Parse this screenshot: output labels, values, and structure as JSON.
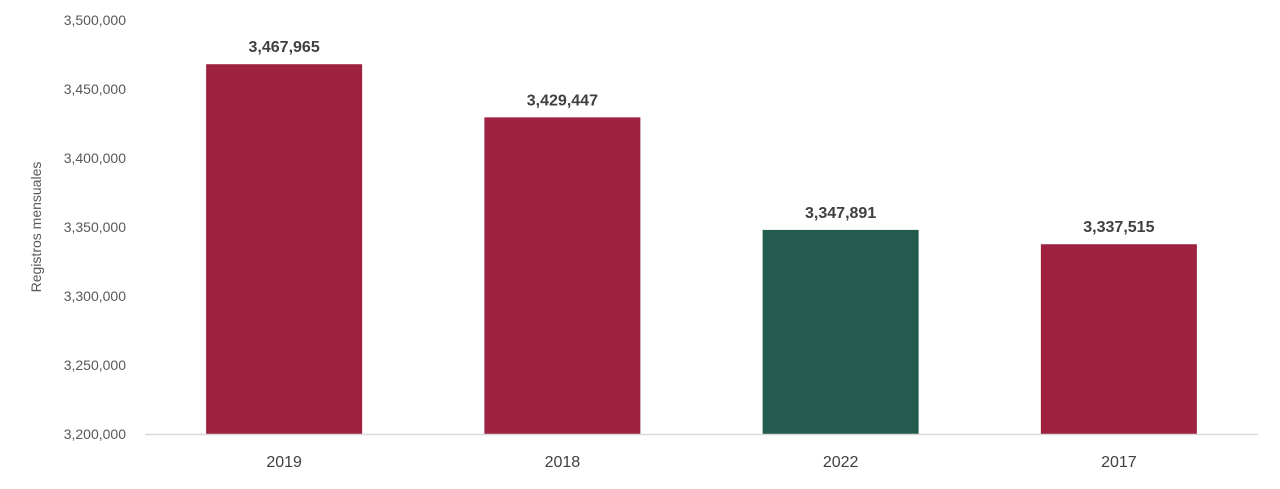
{
  "chart_data": {
    "type": "bar",
    "categories": [
      "2019",
      "2018",
      "2022",
      "2017"
    ],
    "values": [
      3467965,
      3429447,
      3347891,
      3337515
    ],
    "data_labels": [
      "3,467,965",
      "3,429,447",
      "3,347,891",
      "3,337,515"
    ],
    "ylabel": "Registros mensuales",
    "xlabel": "",
    "ylim": [
      3200000,
      3500000
    ],
    "y_ticks": [
      3200000,
      3250000,
      3300000,
      3350000,
      3400000,
      3450000,
      3500000
    ],
    "y_tick_labels": [
      "3,200,000",
      "3,250,000",
      "3,300,000",
      "3,350,000",
      "3,400,000",
      "3,450,000",
      "3,500,000"
    ],
    "bar_colors": [
      "#9e2240",
      "#9e2240",
      "#235b4e",
      "#9e2240"
    ],
    "axis_color": "#d9d9d9",
    "grid": false,
    "legend": "none"
  }
}
